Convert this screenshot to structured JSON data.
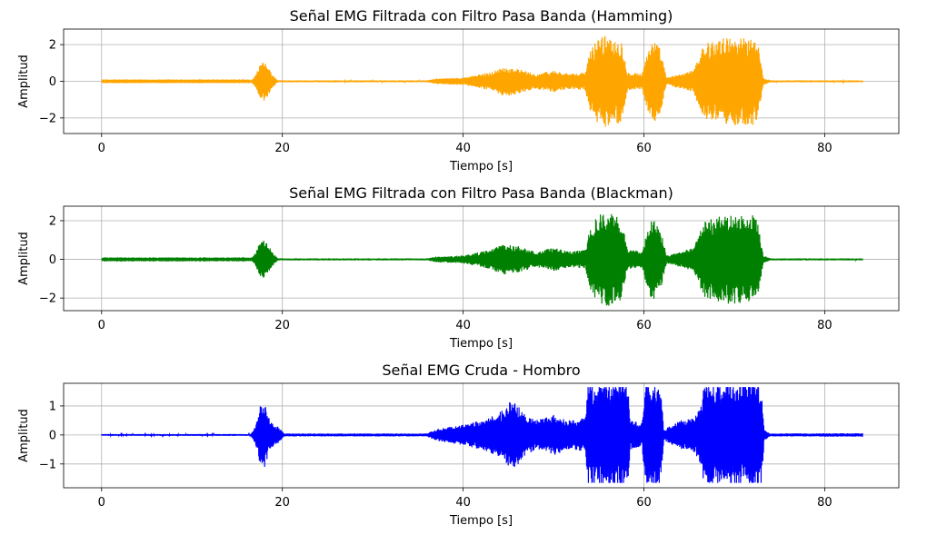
{
  "chart_data": [
    {
      "type": "line",
      "title": "Señal EMG Filtrada con Filtro Pasa Banda (Hamming)",
      "xlabel": "Tiempo [s]",
      "ylabel": "Amplitud",
      "xlim": [
        -4.2,
        88.2
      ],
      "ylim": [
        -2.85,
        2.85
      ],
      "xticks": [
        0,
        20,
        40,
        60,
        80
      ],
      "yticks": [
        -2,
        0,
        2
      ],
      "grid": true,
      "series": [
        {
          "color": "#ffa500",
          "x_range": [
            0,
            84.2
          ],
          "envelope": [
            [
              0,
              0.03
            ],
            [
              16.5,
              0.03
            ],
            [
              17.0,
              0.3
            ],
            [
              17.5,
              0.9
            ],
            [
              18.0,
              1.1
            ],
            [
              18.5,
              0.7
            ],
            [
              19.0,
              0.3
            ],
            [
              19.5,
              0.05
            ],
            [
              36,
              0.05
            ],
            [
              37,
              0.15
            ],
            [
              40,
              0.2
            ],
            [
              43,
              0.5
            ],
            [
              44.5,
              0.8
            ],
            [
              46,
              0.7
            ],
            [
              48,
              0.4
            ],
            [
              50,
              0.6
            ],
            [
              52,
              0.4
            ],
            [
              53.5,
              0.5
            ],
            [
              54,
              1.6
            ],
            [
              55,
              2.5
            ],
            [
              56.5,
              2.5
            ],
            [
              57.5,
              2.2
            ],
            [
              58.2,
              0.5
            ],
            [
              59,
              0.5
            ],
            [
              59.8,
              0.4
            ],
            [
              60.5,
              2.0
            ],
            [
              61.2,
              2.2
            ],
            [
              61.8,
              1.8
            ],
            [
              62.5,
              0.2
            ],
            [
              64,
              0.4
            ],
            [
              65.5,
              0.6
            ],
            [
              66.5,
              2.0
            ],
            [
              67.5,
              2.2
            ],
            [
              69,
              2.4
            ],
            [
              71,
              2.4
            ],
            [
              72.5,
              2.4
            ],
            [
              73.2,
              0.2
            ],
            [
              74,
              0.05
            ],
            [
              84.2,
              0.05
            ]
          ]
        }
      ]
    },
    {
      "type": "line",
      "title": "Señal EMG Filtrada con Filtro Pasa Banda (Blackman)",
      "xlabel": "Tiempo [s]",
      "ylabel": "Amplitud",
      "xlim": [
        -4.2,
        88.2
      ],
      "ylim": [
        -2.65,
        2.75
      ],
      "xticks": [
        0,
        20,
        40,
        60,
        80
      ],
      "yticks": [
        -2,
        0,
        2
      ],
      "grid": true,
      "series": [
        {
          "color": "#008000",
          "x_range": [
            0,
            84.2
          ],
          "envelope": [
            [
              0,
              0.03
            ],
            [
              16.5,
              0.03
            ],
            [
              17.0,
              0.3
            ],
            [
              17.5,
              0.9
            ],
            [
              18.0,
              1.05
            ],
            [
              18.5,
              0.7
            ],
            [
              19.0,
              0.3
            ],
            [
              19.5,
              0.05
            ],
            [
              36,
              0.05
            ],
            [
              37,
              0.15
            ],
            [
              40,
              0.2
            ],
            [
              43,
              0.5
            ],
            [
              44.5,
              0.8
            ],
            [
              46,
              0.7
            ],
            [
              48,
              0.4
            ],
            [
              50,
              0.6
            ],
            [
              52,
              0.4
            ],
            [
              53.5,
              0.5
            ],
            [
              54,
              1.5
            ],
            [
              55,
              2.4
            ],
            [
              56.5,
              2.4
            ],
            [
              57.5,
              2.1
            ],
            [
              58.2,
              0.5
            ],
            [
              59,
              0.5
            ],
            [
              59.8,
              0.4
            ],
            [
              60.5,
              2.0
            ],
            [
              61.2,
              2.1
            ],
            [
              61.8,
              1.7
            ],
            [
              62.5,
              0.2
            ],
            [
              64,
              0.4
            ],
            [
              65.5,
              0.6
            ],
            [
              66.5,
              1.9
            ],
            [
              67.5,
              2.1
            ],
            [
              69,
              2.3
            ],
            [
              71,
              2.3
            ],
            [
              72.5,
              2.3
            ],
            [
              73.2,
              0.2
            ],
            [
              74,
              0.05
            ],
            [
              84.2,
              0.05
            ]
          ]
        }
      ]
    },
    {
      "type": "line",
      "title": "Señal EMG Cruda - Hombro",
      "xlabel": "Tiempo [s]",
      "ylabel": "Amplitud",
      "xlim": [
        -4.2,
        88.2
      ],
      "ylim": [
        -1.82,
        1.78
      ],
      "xticks": [
        0,
        20,
        40,
        60,
        80
      ],
      "yticks": [
        -1,
        0,
        1
      ],
      "grid": true,
      "series": [
        {
          "color": "#0000ff",
          "x_range": [
            0,
            84.2
          ],
          "clip": 1.65,
          "envelope": [
            [
              0,
              0.03
            ],
            [
              16.5,
              0.03
            ],
            [
              17.0,
              0.3
            ],
            [
              17.5,
              1.0
            ],
            [
              18.0,
              1.2
            ],
            [
              18.5,
              0.6
            ],
            [
              19.0,
              0.4
            ],
            [
              19.5,
              0.3
            ],
            [
              20.2,
              0.05
            ],
            [
              36,
              0.05
            ],
            [
              37,
              0.2
            ],
            [
              40,
              0.35
            ],
            [
              43,
              0.6
            ],
            [
              44.5,
              0.9
            ],
            [
              45.5,
              1.3
            ],
            [
              46.5,
              0.8
            ],
            [
              48,
              0.5
            ],
            [
              50,
              0.7
            ],
            [
              52,
              0.5
            ],
            [
              53.5,
              0.6
            ],
            [
              53.8,
              1.8
            ],
            [
              58.2,
              1.8
            ],
            [
              58.5,
              0.5
            ],
            [
              59.8,
              0.4
            ],
            [
              60.2,
              1.8
            ],
            [
              61.8,
              1.8
            ],
            [
              62.2,
              0.2
            ],
            [
              64,
              0.5
            ],
            [
              65.5,
              0.6
            ],
            [
              66.3,
              1.0
            ],
            [
              66.6,
              1.8
            ],
            [
              73,
              1.8
            ],
            [
              73.3,
              0.2
            ],
            [
              74,
              0.05
            ],
            [
              84.2,
              0.06
            ]
          ]
        }
      ]
    }
  ]
}
